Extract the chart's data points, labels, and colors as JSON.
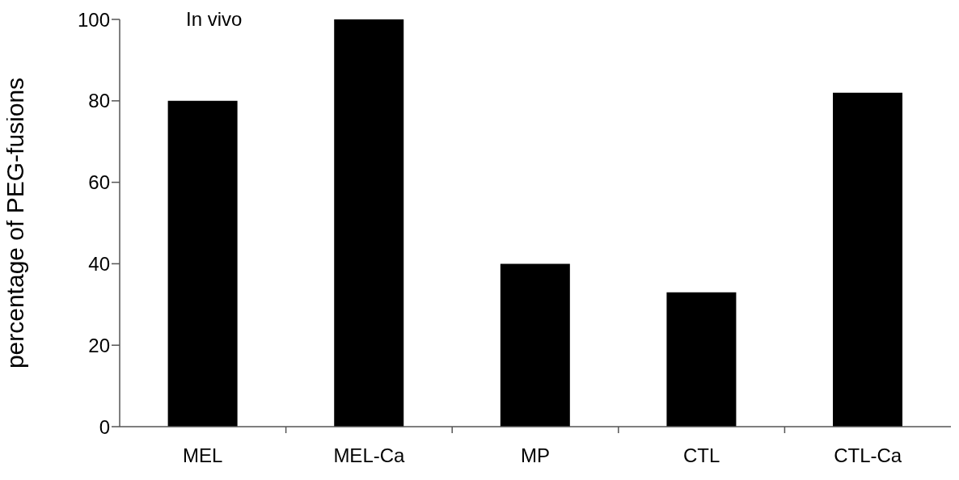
{
  "chart_data": {
    "type": "bar",
    "ylabel": "percentage of PEG-fusions",
    "categories": [
      "MEL",
      "MEL-Ca",
      "MP",
      "CTL",
      "CTL-Ca"
    ],
    "values": [
      80,
      100,
      40,
      33,
      82
    ],
    "color": "#000000",
    "ylim": [
      0,
      100
    ],
    "yticks": [
      0,
      20,
      40,
      60,
      80,
      100
    ],
    "annotations": [
      "In vivo"
    ]
  }
}
